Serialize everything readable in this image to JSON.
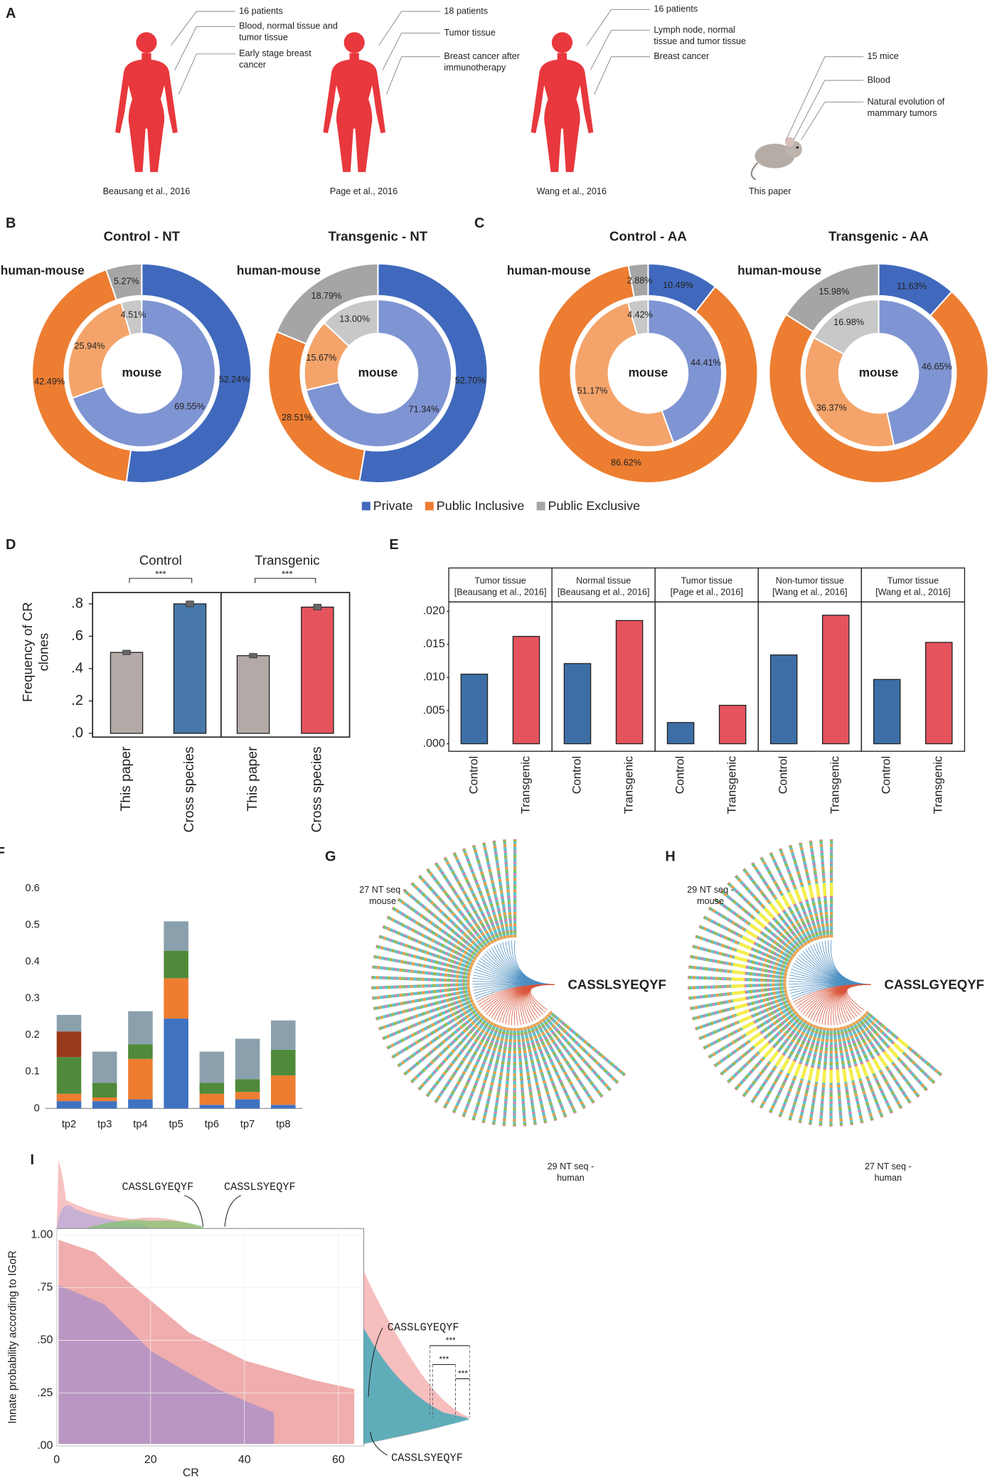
{
  "panel_labels": {
    "a": "A",
    "b": "B",
    "c": "C",
    "d": "D",
    "e": "E",
    "f": "F",
    "g": "G",
    "h": "H",
    "i": "I"
  },
  "studies": [
    {
      "subject": "human",
      "details": [
        [
          "16 patients"
        ],
        [
          "Blood, normal tissue and",
          "tumor tissue"
        ],
        [
          "Early stage breast",
          "cancer"
        ]
      ],
      "citation": "Beausang et al., 2016"
    },
    {
      "subject": "human",
      "details": [
        [
          "18 patients"
        ],
        [
          "Tumor tissue"
        ],
        [
          "Breast cancer after",
          "immunotherapy"
        ]
      ],
      "citation": "Page et al., 2016"
    },
    {
      "subject": "human",
      "details": [
        [
          "16 patients"
        ],
        [
          "Lymph node, normal",
          "tissue and tumor tissue"
        ],
        [
          "Breast cancer"
        ]
      ],
      "citation": "Wang et al., 2016"
    },
    {
      "subject": "mouse",
      "details": [
        [
          "15 mice"
        ],
        [
          "Blood"
        ],
        [
          "Natural evolution of",
          "mammary tumors"
        ]
      ],
      "citation": "This paper"
    }
  ],
  "donut_legend": {
    "labels": [
      "Private",
      "Public Inclusive",
      "Public Exclusive"
    ],
    "colors": [
      "#4069bd",
      "#ed7d31",
      "#a5a5a5"
    ]
  },
  "chart_data": [
    {
      "type": "donut",
      "title": "Control - NT",
      "title_color": "#2e3192",
      "series": [
        {
          "name": "human-mouse",
          "colors": [
            "#4069bd",
            "#ed7d31",
            "#a5a5a5"
          ],
          "values": [
            52.24,
            42.49,
            5.27
          ],
          "value_labels": [
            "52.24%",
            "42.49%",
            "5.27%"
          ]
        },
        {
          "name": "mouse",
          "colors": [
            "#7f94d2",
            "#f4a46a",
            "#c8c8c8"
          ],
          "values": [
            69.55,
            25.94,
            4.51
          ],
          "value_labels": [
            "69.55%",
            "25.94%",
            "4.51%"
          ]
        }
      ]
    },
    {
      "type": "donut",
      "title": "Transgenic - NT",
      "title_color": "#c1272d",
      "series": [
        {
          "name": "human-mouse",
          "colors": [
            "#4069bd",
            "#ed7d31",
            "#a5a5a5"
          ],
          "values": [
            52.7,
            28.51,
            18.79
          ],
          "value_labels": [
            "52.70%",
            "28.51%",
            "18.79%"
          ]
        },
        {
          "name": "mouse",
          "colors": [
            "#7f94d2",
            "#f4a46a",
            "#c8c8c8"
          ],
          "values": [
            71.34,
            15.67,
            13.0
          ],
          "value_labels": [
            "71.34%",
            "15.67%",
            "13.00%"
          ]
        }
      ]
    },
    {
      "type": "donut",
      "title": "Control - AA",
      "title_color": "#2e3192",
      "series": [
        {
          "name": "human-mouse",
          "colors": [
            "#4069bd",
            "#ed7d31",
            "#a5a5a5"
          ],
          "values": [
            10.49,
            86.62,
            2.88
          ],
          "value_labels": [
            "10.49%",
            "86.62%",
            "2.88%"
          ]
        },
        {
          "name": "mouse",
          "colors": [
            "#7f94d2",
            "#f4a46a",
            "#c8c8c8"
          ],
          "values": [
            44.41,
            51.17,
            4.42
          ],
          "value_labels": [
            "44.41%",
            "51.17%",
            "4.42%"
          ]
        }
      ]
    },
    {
      "type": "donut",
      "title": "Transgenic - AA",
      "title_color": "#c1272d",
      "series": [
        {
          "name": "human-mouse",
          "colors": [
            "#4069bd",
            "#ed7d31",
            "#a5a5a5"
          ],
          "values": [
            11.63,
            72.39,
            15.98
          ],
          "value_labels": [
            "11.63%",
            null,
            "15.98%"
          ]
        },
        {
          "name": "mouse",
          "colors": [
            "#7f94d2",
            "#f4a46a",
            "#c8c8c8"
          ],
          "values": [
            46.65,
            36.37,
            16.98
          ],
          "value_labels": [
            "46.65%",
            "36.37%",
            "16.98%"
          ]
        }
      ]
    },
    {
      "type": "bar",
      "ylabel": [
        "Frequency of CR",
        "clones"
      ],
      "groups": [
        "Control",
        "Transgenic"
      ],
      "significance": [
        "***",
        "***"
      ],
      "categories": [
        "This paper",
        "Cross species",
        "This paper",
        "Cross species"
      ],
      "values": [
        0.5,
        0.8,
        0.48,
        0.78
      ],
      "errors": [
        0.008,
        0.012,
        0.008,
        0.012
      ],
      "colors": [
        "#b3aaa7",
        "#4878aa",
        "#b3aaa7",
        "#e5545d"
      ],
      "ylim": [
        0,
        0.87
      ],
      "yticks": [
        {
          "value": 0,
          "label": ".0"
        },
        {
          "value": 0.2,
          "label": ".2"
        },
        {
          "value": 0.4,
          "label": ".4"
        },
        {
          "value": 0.6,
          "label": ".6"
        },
        {
          "value": 0.8,
          "label": ".8"
        }
      ]
    },
    {
      "type": "faceted_bar",
      "categories": [
        "Control",
        "Transgenic"
      ],
      "colors": [
        "#3d6fa6",
        "#e5545d"
      ],
      "facets": [
        {
          "header": [
            "Tumor tissue",
            "[Beausang et al., 2016]"
          ],
          "values": [
            0.0105,
            0.0162
          ]
        },
        {
          "header": [
            "Normal tissue",
            "[Beausang et al., 2016]"
          ],
          "values": [
            0.0121,
            0.0186
          ]
        },
        {
          "header": [
            "Tumor tissue",
            "[Page et al., 2016]"
          ],
          "values": [
            0.0032,
            0.0058
          ]
        },
        {
          "header": [
            "Non-tumor tissue",
            "[Wang et al., 2016]"
          ],
          "values": [
            0.0134,
            0.0194
          ]
        },
        {
          "header": [
            "Tumor tissue",
            "[Wang et al., 2016]"
          ],
          "values": [
            0.0097,
            0.0153
          ]
        }
      ],
      "ylim": [
        0,
        0.0214
      ],
      "yticks": [
        {
          "value": 0,
          "label": ".000"
        },
        {
          "value": 0.005,
          "label": ".005"
        },
        {
          "value": 0.01,
          "label": ".010"
        },
        {
          "value": 0.015,
          "label": ".015"
        },
        {
          "value": 0.02,
          "label": ".020"
        }
      ]
    },
    {
      "type": "stacked_bar",
      "categories": [
        "tp2",
        "tp3",
        "tp4",
        "tp5",
        "tp6",
        "tp7",
        "tp8"
      ],
      "series": [
        {
          "color": "#3f72c0",
          "values": [
            0.02,
            0.02,
            0.025,
            0.245,
            0.01,
            0.025,
            0.01
          ]
        },
        {
          "color": "#ee7d30",
          "values": [
            0.02,
            0.01,
            0.11,
            0.11,
            0.03,
            0.02,
            0.08
          ]
        },
        {
          "color": "#4f8a3a",
          "values": [
            0.1,
            0.04,
            0.04,
            0.075,
            0.03,
            0.035,
            0.07
          ]
        },
        {
          "color": "#9a3a1c",
          "values": [
            0.07,
            0,
            0,
            0,
            0,
            0,
            0
          ]
        },
        {
          "color": "#8aa0ad",
          "values": [
            0.045,
            0.085,
            0.09,
            0.08,
            0.085,
            0.11,
            0.08
          ]
        }
      ],
      "ylim": [
        0,
        0.6
      ],
      "yticks": [
        0,
        0.1,
        0.2,
        0.3,
        0.4,
        0.5,
        0.6
      ]
    },
    {
      "type": "sequence_fan",
      "top_label": [
        "27 NT seq -",
        "mouse"
      ],
      "center_label": "CASSLSYEQYF",
      "center_color": "#4a78c4",
      "bottom_label": [
        "29 NT seq -",
        "human"
      ],
      "highlight_ring": false
    },
    {
      "type": "sequence_fan",
      "top_label": [
        "29 NT seq -",
        "mouse"
      ],
      "center_label": "CASSLGYEQYF",
      "center_color": "#ef7d2c",
      "bottom_label": [
        "27 NT seq -",
        "human"
      ],
      "highlight_ring": true
    },
    {
      "type": "scatter",
      "xlabel": "CR",
      "ylabel": "Innate probability according to IGoR",
      "xlim": [
        0,
        65.4
      ],
      "ylim": [
        0,
        1.03
      ],
      "xticks": [
        0,
        20,
        40,
        60
      ],
      "yticks": [
        {
          "value": 0,
          "label": ".00"
        },
        {
          "value": 0.25,
          "label": ".25"
        },
        {
          "value": 0.5,
          "label": ".50"
        },
        {
          "value": 0.75,
          "label": ".75"
        },
        {
          "value": 1,
          "label": "1.00"
        }
      ],
      "annotations": [
        {
          "text": "CASSLGYEQYF",
          "color": "#e8883a"
        },
        {
          "text": "CASSLSYEQYF",
          "color": "#5a7fc0"
        }
      ],
      "significance": [
        "***",
        "***",
        "***"
      ]
    }
  ]
}
